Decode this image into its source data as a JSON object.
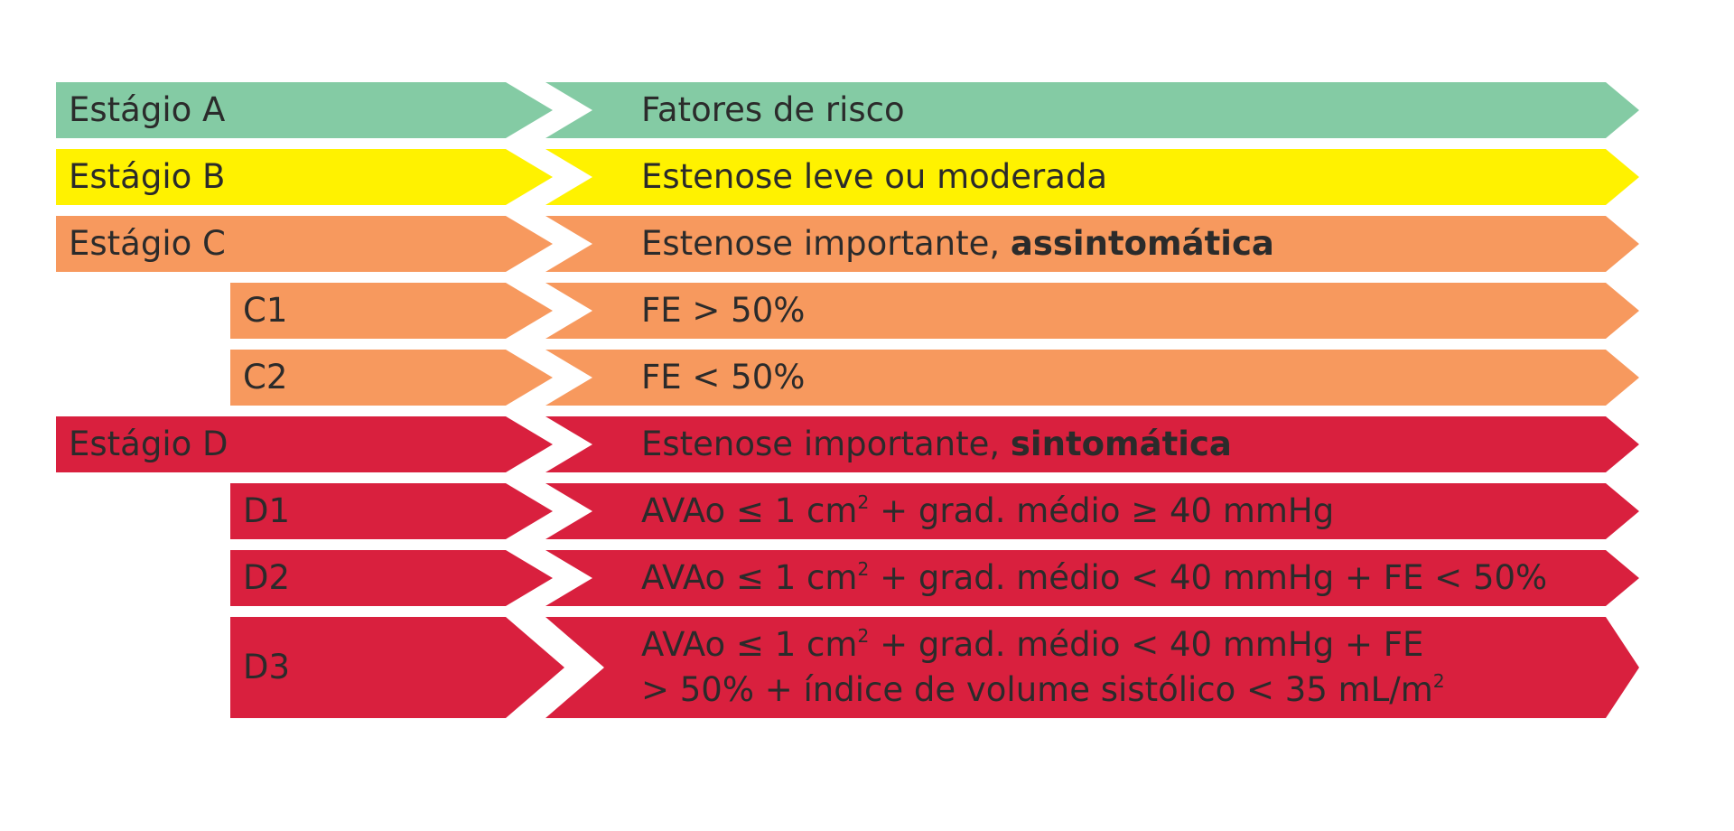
{
  "colors": {
    "green": "#84cba4",
    "yellow": "#fff200",
    "orange": "#f7995e",
    "red": "#d9203e",
    "text": "#2b2b2b"
  },
  "rows": [
    {
      "id": "a",
      "stage": "Estágio A",
      "color": "green",
      "parts": [
        {
          "t": "Fatores de risco"
        }
      ]
    },
    {
      "id": "b",
      "stage": "Estágio B",
      "color": "yellow",
      "parts": [
        {
          "t": "Estenose leve ou moderada"
        }
      ]
    },
    {
      "id": "c",
      "stage": "Estágio C",
      "color": "orange",
      "parts": [
        {
          "t": "Estenose importante, "
        },
        {
          "t": "assintomática",
          "b": true
        }
      ]
    },
    {
      "id": "c1",
      "stage": "C1",
      "color": "orange",
      "parts": [
        {
          "t": "FE > 50%"
        }
      ]
    },
    {
      "id": "c2",
      "stage": "C2",
      "color": "orange",
      "parts": [
        {
          "t": "FE < 50%"
        }
      ]
    },
    {
      "id": "d",
      "stage": "Estágio D",
      "color": "red",
      "parts": [
        {
          "t": "Estenose importante, "
        },
        {
          "t": "sintomática",
          "b": true
        }
      ]
    },
    {
      "id": "d1",
      "stage": "D1",
      "color": "red",
      "parts": [
        {
          "t": "AVAo ≤ 1 cm"
        },
        {
          "t": "2",
          "sup": true
        },
        {
          "t": " + grad. médio ≥ 40 mmHg"
        }
      ]
    },
    {
      "id": "d2",
      "stage": "D2",
      "color": "red",
      "parts": [
        {
          "t": "AVAo ≤ 1 cm"
        },
        {
          "t": "2",
          "sup": true
        },
        {
          "t": " + grad. médio < 40 mmHg + FE < 50%"
        }
      ]
    },
    {
      "id": "d3",
      "stage": "D3",
      "color": "red",
      "parts": [
        {
          "t": "AVAo ≤ 1 cm"
        },
        {
          "t": "2",
          "sup": true
        },
        {
          "t": " + grad. médio < 40 mmHg + FE"
        },
        {
          "br": true
        },
        {
          "t": "> 50% + índice de volume sistólico < 35 mL/m"
        },
        {
          "t": "2",
          "sup": true
        }
      ]
    }
  ]
}
